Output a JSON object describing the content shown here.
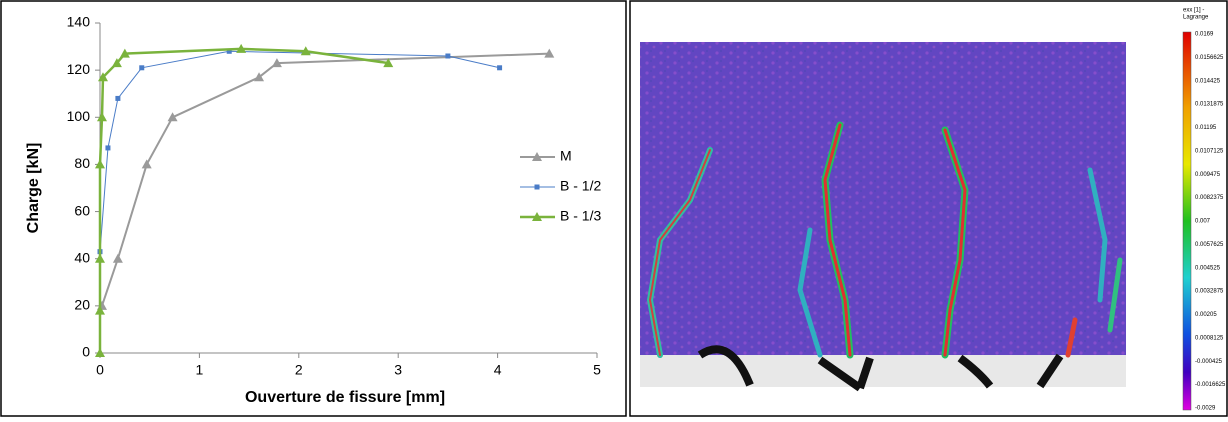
{
  "chart_data": {
    "type": "line",
    "xlabel": "Ouverture de fissure [mm]",
    "ylabel": "Charge [kN]",
    "xlim": [
      0,
      5
    ],
    "xticks": [
      0,
      1,
      2,
      3,
      4,
      5
    ],
    "ylim": [
      0,
      140
    ],
    "yticks": [
      0,
      20,
      40,
      60,
      80,
      100,
      120,
      140
    ],
    "grid": false,
    "legend": "right",
    "series": [
      {
        "name": "M",
        "color": "#9a9a9a",
        "marker": "triangle",
        "x": [
          0.02,
          0.18,
          0.47,
          0.73,
          1.6,
          1.78,
          4.52
        ],
        "values": [
          20,
          40,
          80,
          100,
          117,
          123,
          127
        ]
      },
      {
        "name": "B - 1/2",
        "color": "#4a7cc7",
        "marker": "square",
        "x": [
          0,
          0.08,
          0.18,
          0.42,
          1.3,
          3.5,
          4.02
        ],
        "values": [
          43,
          87,
          108,
          121,
          128,
          126,
          121
        ]
      },
      {
        "name": "B - 1/3",
        "color": "#7ab33c",
        "marker": "triangle",
        "x": [
          0,
          0,
          0,
          0,
          0.02,
          0.03,
          0.17,
          0.25,
          1.42,
          2.07,
          2.9
        ],
        "values": [
          0,
          18,
          40,
          80,
          100,
          117,
          123,
          127,
          129,
          128,
          123
        ]
      }
    ]
  },
  "colorbar": {
    "title": [
      "exx [1] -",
      "Lagrange"
    ],
    "ticks": [
      0.0169,
      0.0156625,
      0.014425,
      0.0131875,
      0.01195,
      0.0107125,
      0.009475,
      0.0082375,
      0.007,
      0.0057625,
      0.004525,
      0.0032875,
      0.00205,
      0.0008125,
      -0.000425,
      -0.0016625,
      -0.0029
    ]
  }
}
